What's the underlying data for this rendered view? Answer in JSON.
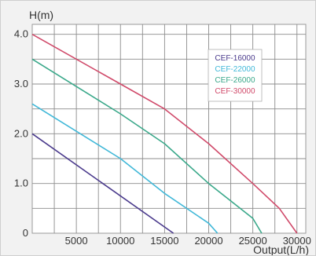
{
  "chart_data": {
    "type": "line",
    "ylabel": "H(m)",
    "xlabel": "Output(L/h)",
    "xlim": [
      0,
      31000
    ],
    "ylim": [
      0,
      4.2
    ],
    "x_ticks": [
      5000,
      10000,
      15000,
      20000,
      25000,
      30000
    ],
    "x_tick_labels": [
      "5000",
      "10000",
      "15000",
      "20000",
      "25000",
      "30000"
    ],
    "y_ticks": [
      0,
      1.0,
      2.0,
      3.0,
      4.0
    ],
    "y_tick_labels": [
      "0",
      "1.0",
      "2.0",
      "3.0",
      "4.0"
    ],
    "grid": true,
    "legend_position": "top-right",
    "series": [
      {
        "name": "CEF-16000",
        "color": "#4a3a8c",
        "x": [
          0,
          16000
        ],
        "y": [
          2.0,
          0.0
        ]
      },
      {
        "name": "CEF-22000",
        "color": "#41b8d8",
        "x": [
          0,
          10000,
          15000,
          20000,
          21000
        ],
        "y": [
          2.6,
          1.5,
          0.8,
          0.2,
          0.0
        ]
      },
      {
        "name": "CEF-26000",
        "color": "#3aa88a",
        "x": [
          0,
          10000,
          15000,
          20000,
          25000,
          26000
        ],
        "y": [
          3.5,
          2.4,
          1.8,
          1.0,
          0.3,
          0.0
        ]
      },
      {
        "name": "CEF-30000",
        "color": "#d04a6a",
        "x": [
          0,
          10000,
          15000,
          20000,
          25000,
          28000,
          30000
        ],
        "y": [
          4.0,
          3.0,
          2.5,
          1.8,
          1.0,
          0.5,
          0.0
        ]
      }
    ]
  }
}
